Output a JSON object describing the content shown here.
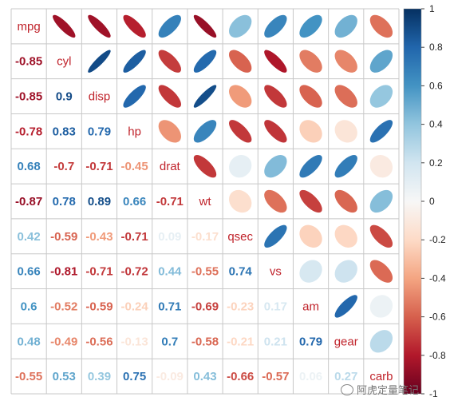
{
  "chart_data": {
    "type": "heatmap",
    "title": "",
    "variables": [
      "mpg",
      "cyl",
      "disp",
      "hp",
      "drat",
      "wt",
      "qsec",
      "vs",
      "am",
      "gear",
      "carb"
    ],
    "matrix": [
      [
        1,
        -0.85,
        -0.85,
        -0.78,
        0.68,
        -0.87,
        0.42,
        0.66,
        0.6,
        0.48,
        -0.55
      ],
      [
        -0.85,
        1,
        0.9,
        0.83,
        -0.7,
        0.78,
        -0.59,
        -0.81,
        -0.52,
        -0.49,
        0.53
      ],
      [
        -0.85,
        0.9,
        1,
        0.79,
        -0.71,
        0.89,
        -0.43,
        -0.71,
        -0.59,
        -0.56,
        0.39
      ],
      [
        -0.78,
        0.83,
        0.79,
        1,
        -0.45,
        0.66,
        -0.71,
        -0.72,
        -0.24,
        -0.13,
        0.75
      ],
      [
        0.68,
        -0.7,
        -0.71,
        -0.45,
        1,
        -0.71,
        0.09,
        0.44,
        0.71,
        0.7,
        -0.09
      ],
      [
        -0.87,
        0.78,
        0.89,
        0.66,
        -0.71,
        1,
        -0.17,
        -0.55,
        -0.69,
        -0.58,
        0.43
      ],
      [
        0.42,
        -0.59,
        -0.43,
        -0.71,
        0.09,
        -0.17,
        1,
        0.74,
        -0.23,
        -0.21,
        -0.66
      ],
      [
        0.66,
        -0.81,
        -0.71,
        -0.72,
        0.44,
        -0.55,
        0.74,
        1,
        0.17,
        0.21,
        -0.57
      ],
      [
        0.6,
        -0.52,
        -0.59,
        -0.24,
        0.71,
        -0.69,
        -0.23,
        0.17,
        1,
        0.79,
        0.06
      ],
      [
        0.48,
        -0.49,
        -0.56,
        -0.13,
        0.7,
        -0.58,
        -0.21,
        0.21,
        0.79,
        1,
        0.27
      ],
      [
        -0.55,
        0.53,
        0.39,
        0.75,
        -0.09,
        0.43,
        -0.66,
        -0.57,
        0.06,
        0.27,
        1
      ]
    ],
    "lower_triangle": "number",
    "upper_triangle": "ellipse",
    "diagonal_label_color": "#c0232b",
    "colorbar": {
      "ticks": [
        "-1",
        "-0.8",
        "-0.6",
        "-0.4",
        "-0.2",
        "0",
        "0.2",
        "0.4",
        "0.6",
        "0.8",
        "1"
      ],
      "range": [
        -1,
        1
      ],
      "colors": [
        "#67001f",
        "#b2182b",
        "#d6604d",
        "#f4a582",
        "#fddbc7",
        "#f7f7f7",
        "#d1e5f0",
        "#92c5de",
        "#4393c3",
        "#2166ac",
        "#053061"
      ]
    }
  },
  "watermark": {
    "icon": "wechat-icon",
    "text": "阿虎定量笔记"
  }
}
